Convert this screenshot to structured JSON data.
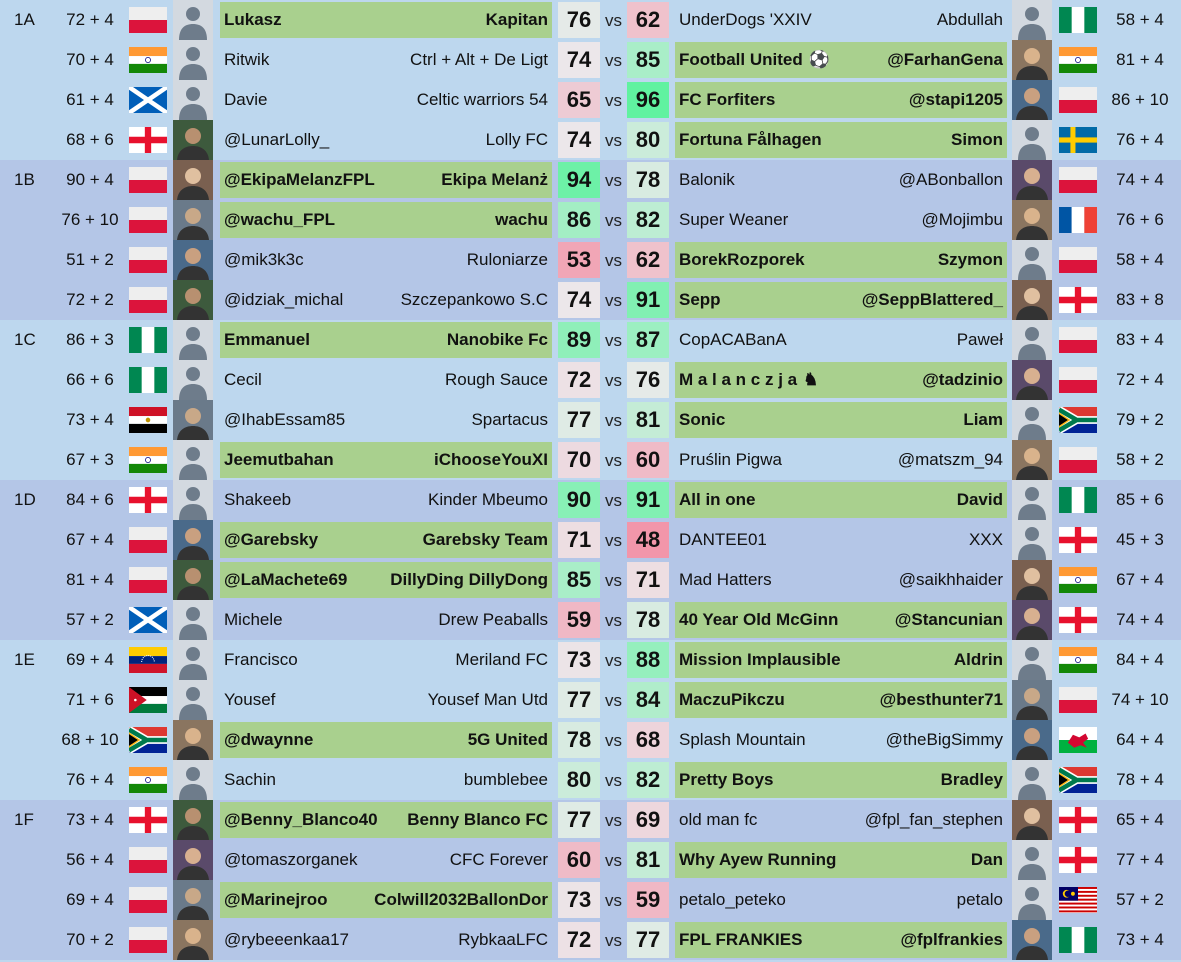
{
  "vs_label": "vs",
  "groups": [
    {
      "label": "1A",
      "matches": [
        {
          "home": {
            "points": "72 + 4",
            "flag": "poland",
            "avatar": "default",
            "manager": "Lukasz",
            "team": "Kapitan",
            "score": 76
          },
          "away": {
            "points": "58 + 4",
            "flag": "nigeria",
            "avatar": "default",
            "manager": "Abdullah",
            "team": "UnderDogs 'XXIV",
            "score": 62
          }
        },
        {
          "home": {
            "points": "70 + 4",
            "flag": "india",
            "avatar": "default",
            "manager": "Ritwik",
            "team": "Ctrl + Alt + De Ligt",
            "score": 74
          },
          "away": {
            "points": "81 + 4",
            "flag": "india",
            "avatar": "photo",
            "manager": "@FarhanGena",
            "team": "Football United",
            "team_icon": "⚽",
            "score": 85
          }
        },
        {
          "home": {
            "points": "61 + 4",
            "flag": "scotland",
            "avatar": "default",
            "manager": "Davie",
            "team": "Celtic warriors 54",
            "score": 65
          },
          "away": {
            "points": "86 + 10",
            "flag": "poland",
            "avatar": "photo",
            "manager": "@stapi1205",
            "team": "FC Forfiters",
            "score": 96
          }
        },
        {
          "home": {
            "points": "68 + 6",
            "flag": "england",
            "avatar": "photo",
            "manager": "@LunarLolly_",
            "team": "Lolly FC",
            "score": 74
          },
          "away": {
            "points": "76 + 4",
            "flag": "sweden",
            "avatar": "default",
            "manager": "Simon",
            "team": "Fortuna Fålhagen",
            "score": 80
          }
        }
      ]
    },
    {
      "label": "1B",
      "matches": [
        {
          "home": {
            "points": "90 + 4",
            "flag": "poland",
            "avatar": "photo",
            "manager": "@EkipaMelanzFPL",
            "team": "Ekipa Melanż",
            "score": 94
          },
          "away": {
            "points": "74 + 4",
            "flag": "poland",
            "avatar": "photo",
            "manager": "@ABonballon",
            "team": "Balonik",
            "score": 78
          }
        },
        {
          "home": {
            "points": "76 + 10",
            "flag": "poland",
            "avatar": "photo",
            "manager": "@wachu_FPL",
            "team": "wachu",
            "score": 86
          },
          "away": {
            "points": "76 + 6",
            "flag": "france",
            "avatar": "photo",
            "manager": "@Mojimbu",
            "team": "Super Weaner",
            "score": 82
          }
        },
        {
          "home": {
            "points": "51 + 2",
            "flag": "poland",
            "avatar": "photo",
            "manager": "@mik3k3c",
            "team": "Ruloniarze",
            "score": 53
          },
          "away": {
            "points": "58 + 4",
            "flag": "poland",
            "avatar": "default",
            "manager": "Szymon",
            "team": "BorekRozporek",
            "score": 62
          }
        },
        {
          "home": {
            "points": "72 + 2",
            "flag": "poland",
            "avatar": "photo",
            "manager": "@idziak_michal",
            "team": "Szczepankowo S.C",
            "score": 74
          },
          "away": {
            "points": "83 + 8",
            "flag": "england",
            "avatar": "photo",
            "manager": "@SeppBlattered_",
            "team": "Sepp",
            "score": 91
          }
        }
      ]
    },
    {
      "label": "1C",
      "matches": [
        {
          "home": {
            "points": "86 + 3",
            "flag": "nigeria",
            "avatar": "default",
            "manager": "Emmanuel",
            "team": "Nanobike Fc",
            "score": 89
          },
          "away": {
            "points": "83 + 4",
            "flag": "poland",
            "avatar": "default",
            "manager": "Paweł",
            "team": "CopACABanA",
            "score": 87
          }
        },
        {
          "home": {
            "points": "66 + 6",
            "flag": "nigeria",
            "avatar": "default",
            "manager": "Cecil",
            "team": "Rough Sauce",
            "score": 72
          },
          "away": {
            "points": "72 + 4",
            "flag": "poland",
            "avatar": "photo",
            "manager": "@tadzinio",
            "team": "M a l a n c z j a",
            "team_icon": "♞",
            "score": 76
          }
        },
        {
          "home": {
            "points": "73 + 4",
            "flag": "egypt",
            "avatar": "photo",
            "manager": "@IhabEssam85",
            "team": "Spartacus",
            "score": 77
          },
          "away": {
            "points": "79 + 2",
            "flag": "south-africa",
            "avatar": "default",
            "manager": "Liam",
            "team": "Sonic",
            "score": 81
          }
        },
        {
          "home": {
            "points": "67 + 3",
            "flag": "india",
            "avatar": "default",
            "manager": "Jeemutbahan",
            "team": "iChooseYouXI",
            "score": 70
          },
          "away": {
            "points": "58 + 2",
            "flag": "poland",
            "avatar": "photo",
            "manager": "@matszm_94",
            "team": "Pruślin Pigwa",
            "score": 60
          }
        }
      ]
    },
    {
      "label": "1D",
      "matches": [
        {
          "home": {
            "points": "84 + 6",
            "flag": "england",
            "avatar": "default",
            "manager": "Shakeeb",
            "team": "Kinder Mbeumo",
            "score": 90
          },
          "away": {
            "points": "85 + 6",
            "flag": "nigeria",
            "avatar": "default",
            "manager": "David",
            "team": "All in one",
            "score": 91
          }
        },
        {
          "home": {
            "points": "67 + 4",
            "flag": "poland",
            "avatar": "photo",
            "manager": "@Garebsky",
            "team": "Garebsky Team",
            "score": 71
          },
          "away": {
            "points": "45 + 3",
            "flag": "england",
            "avatar": "default",
            "manager": "XXX",
            "team": "DANTEE01",
            "score": 48
          }
        },
        {
          "home": {
            "points": "81 + 4",
            "flag": "poland",
            "avatar": "photo",
            "manager": "@LaMachete69",
            "team": "DillyDing DillyDong",
            "score": 85
          },
          "away": {
            "points": "67 + 4",
            "flag": "india",
            "avatar": "photo",
            "manager": "@saikhhaider",
            "team": "Mad Hatters",
            "score": 71
          }
        },
        {
          "home": {
            "points": "57 + 2",
            "flag": "scotland",
            "avatar": "default",
            "manager": "Michele",
            "team": "Drew Peaballs",
            "score": 59
          },
          "away": {
            "points": "74 + 4",
            "flag": "england",
            "avatar": "photo",
            "manager": "@Stancunian",
            "team": "40 Year Old McGinn",
            "score": 78
          }
        }
      ]
    },
    {
      "label": "1E",
      "matches": [
        {
          "home": {
            "points": "69 + 4",
            "flag": "venezuela",
            "avatar": "default",
            "manager": "Francisco",
            "team": "Meriland FC",
            "score": 73
          },
          "away": {
            "points": "84 + 4",
            "flag": "india",
            "avatar": "default",
            "manager": "Aldrin",
            "team": "Mission Implausible",
            "score": 88
          }
        },
        {
          "home": {
            "points": "71 + 6",
            "flag": "jordan",
            "avatar": "default",
            "manager": "Yousef",
            "team": "Yousef Man Utd",
            "score": 77
          },
          "away": {
            "points": "74 + 10",
            "flag": "poland",
            "avatar": "photo",
            "manager": "@besthunter71",
            "team": "MaczuPikczu",
            "score": 84
          }
        },
        {
          "home": {
            "points": "68 + 10",
            "flag": "south-africa",
            "avatar": "photo",
            "manager": "@dwaynne",
            "team": "5G United",
            "score": 78
          },
          "away": {
            "points": "64 + 4",
            "flag": "wales",
            "avatar": "photo",
            "manager": "@theBigSimmy",
            "team": "Splash Mountain",
            "score": 68
          }
        },
        {
          "home": {
            "points": "76 + 4",
            "flag": "india",
            "avatar": "default",
            "manager": "Sachin",
            "team": "bumblebee",
            "score": 80
          },
          "away": {
            "points": "78 + 4",
            "flag": "south-africa",
            "avatar": "default",
            "manager": "Bradley",
            "team": "Pretty Boys",
            "score": 82
          }
        }
      ]
    },
    {
      "label": "1F",
      "matches": [
        {
          "home": {
            "points": "73 + 4",
            "flag": "england",
            "avatar": "photo",
            "manager": "@Benny_Blanco40",
            "team": "Benny Blanco FC",
            "score": 77
          },
          "away": {
            "points": "65 + 4",
            "flag": "england",
            "avatar": "photo",
            "manager": "@fpl_fan_stephen",
            "team": "old man fc",
            "score": 69
          }
        },
        {
          "home": {
            "points": "56 + 4",
            "flag": "poland",
            "avatar": "photo",
            "manager": "@tomaszorganek",
            "team": "CFC Forever",
            "score": 60
          },
          "away": {
            "points": "77 + 4",
            "flag": "england",
            "avatar": "default",
            "manager": "Dan",
            "team": "Why Ayew Running",
            "score": 81
          }
        },
        {
          "home": {
            "points": "69 + 4",
            "flag": "poland",
            "avatar": "photo",
            "manager": "@Marinejroo",
            "team": "Colwill2032BallonDor",
            "score": 73
          },
          "away": {
            "points": "57 + 2",
            "flag": "malaysia",
            "avatar": "default",
            "manager": "petalo",
            "team": "petalo_peteko",
            "score": 59
          }
        },
        {
          "home": {
            "points": "70 + 2",
            "flag": "poland",
            "avatar": "photo",
            "manager": "@rybeeenkaa17",
            "team": "RybkaaLFC",
            "score": 72
          },
          "away": {
            "points": "73 + 4",
            "flag": "nigeria",
            "avatar": "photo",
            "manager": "@fplfrankies",
            "team": "FPL FRANKIES",
            "score": 77
          }
        }
      ]
    }
  ]
}
